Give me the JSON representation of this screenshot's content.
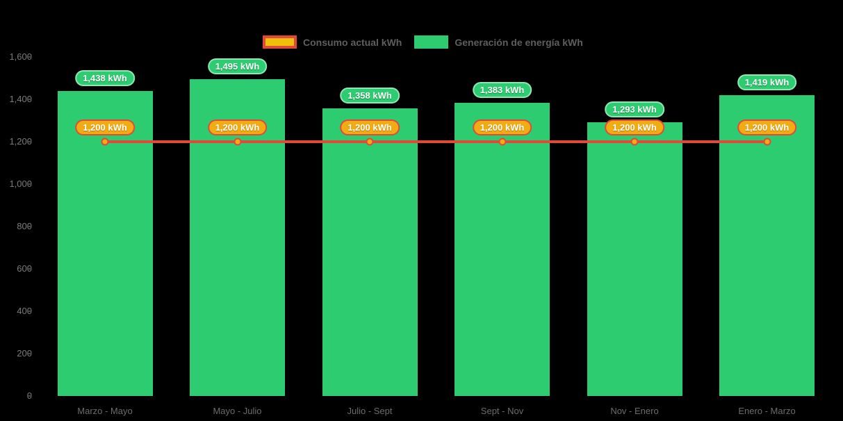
{
  "page": {
    "background": "#000000"
  },
  "legend": {
    "items": [
      {
        "label": "Consumo actual kWh",
        "swatch": "outlined-orange"
      },
      {
        "label": "Generación de energía kWh",
        "swatch": "solid-green"
      }
    ]
  },
  "chart_data": {
    "type": "bar",
    "subtype": "combo-bar-line",
    "title": "",
    "xlabel": "",
    "ylabel": "",
    "categories": [
      "Marzo - Mayo",
      "Mayo - Julio",
      "Julio - Sept",
      "Sept - Nov",
      "Nov - Enero",
      "Enero - Marzo"
    ],
    "series": [
      {
        "name": "Generación de energía kWh",
        "type": "bar",
        "color": "#2ecc71",
        "values": [
          1438,
          1495,
          1358,
          1383,
          1293,
          1419
        ],
        "labels": [
          "1,438 kWh",
          "1,495 kWh",
          "1,358 kWh",
          "1,383 kWh",
          "1,293 kWh",
          "1,419 kWh"
        ]
      },
      {
        "name": "Consumo actual kWh",
        "type": "line",
        "color": "#e2493b",
        "marker_color": "#f5ac0f",
        "values": [
          1200,
          1200,
          1200,
          1200,
          1200,
          1200
        ],
        "labels": [
          "1,200 kWh",
          "1,200 kWh",
          "1,200 kWh",
          "1,200 kWh",
          "1,200 kWh",
          "1,200 kWh"
        ]
      }
    ],
    "y_axis": {
      "min": 0,
      "max": 1600,
      "tick_step": 200,
      "tick_labels": [
        "0",
        "200",
        "400",
        "600",
        "800",
        "1,000",
        "1,200",
        "1,400",
        "1,600"
      ]
    },
    "grid": false,
    "legend_position": "top-center",
    "background": "#000000"
  }
}
